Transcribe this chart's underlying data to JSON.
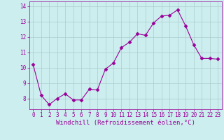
{
  "x": [
    0,
    1,
    2,
    3,
    4,
    5,
    6,
    7,
    8,
    9,
    10,
    11,
    12,
    13,
    14,
    15,
    16,
    17,
    18,
    19,
    20,
    21,
    22,
    23
  ],
  "y": [
    10.2,
    8.2,
    7.6,
    8.0,
    8.3,
    7.9,
    7.9,
    8.6,
    8.55,
    9.9,
    10.3,
    11.3,
    11.65,
    12.2,
    12.1,
    12.9,
    13.35,
    13.4,
    13.75,
    12.7,
    11.5,
    10.6,
    10.6,
    10.55
  ],
  "line_color": "#990099",
  "marker": "D",
  "marker_size": 2.5,
  "background_color": "#cceeee",
  "grid_color": "#aacccc",
  "xlabel": "Windchill (Refroidissement éolien,°C)",
  "xlabel_color": "#990099",
  "xlim": [
    -0.5,
    23.5
  ],
  "ylim": [
    7.3,
    14.3
  ],
  "yticks": [
    8,
    9,
    10,
    11,
    12,
    13,
    14
  ],
  "xticks": [
    0,
    1,
    2,
    3,
    4,
    5,
    6,
    7,
    8,
    9,
    10,
    11,
    12,
    13,
    14,
    15,
    16,
    17,
    18,
    19,
    20,
    21,
    22,
    23
  ],
  "tick_color": "#990099",
  "tick_fontsize": 5.5,
  "xlabel_fontsize": 6.5
}
